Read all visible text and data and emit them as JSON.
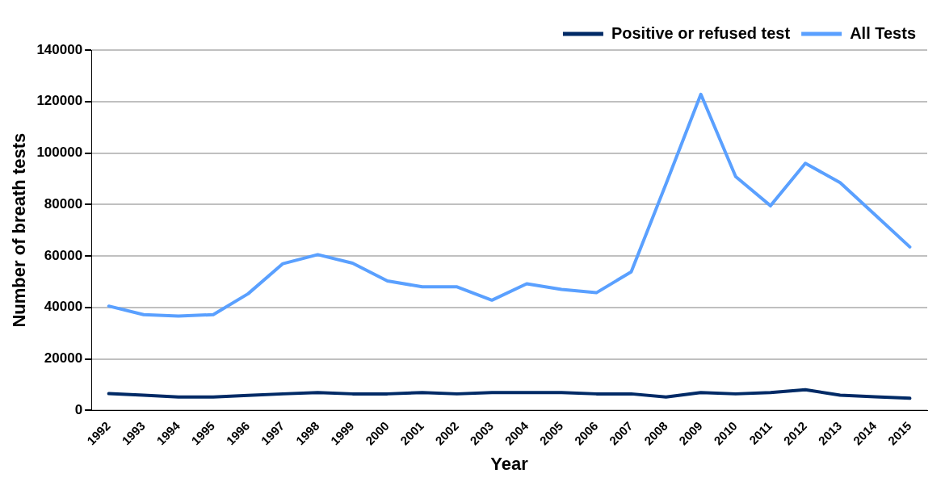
{
  "chart_data": {
    "type": "line",
    "xlabel": "Year",
    "ylabel": "Number of breath tests",
    "categories": [
      "1992",
      "1993",
      "1994",
      "1995",
      "1996",
      "1997",
      "1998",
      "1999",
      "2000",
      "2001",
      "2002",
      "2003",
      "2004",
      "2005",
      "2006",
      "2007",
      "2008",
      "2009",
      "2010",
      "2011",
      "2012",
      "2013",
      "2014",
      "2015"
    ],
    "series": [
      {
        "name": "Positive or refused test",
        "color": "#002a66",
        "values": [
          6500,
          5900,
          5200,
          5200,
          5800,
          6400,
          6900,
          6400,
          6400,
          6900,
          6400,
          6900,
          6900,
          6900,
          6400,
          6400,
          5200,
          6900,
          6400,
          6900,
          8000,
          5900,
          5300,
          4700
        ]
      },
      {
        "name": "All Tests",
        "color": "#5aa0ff",
        "values": [
          40500,
          37200,
          36600,
          37200,
          45300,
          57000,
          60500,
          57200,
          50300,
          48000,
          48000,
          42800,
          49200,
          47000,
          45700,
          53800,
          88000,
          122800,
          90800,
          79500,
          96000,
          88500,
          76000,
          63500
        ]
      }
    ],
    "ylim": [
      0,
      140000
    ],
    "yticks": [
      0,
      20000,
      40000,
      60000,
      80000,
      100000,
      120000,
      140000
    ],
    "grid": "y",
    "legend": "top right",
    "marker": "none",
    "line_style": "solid"
  }
}
